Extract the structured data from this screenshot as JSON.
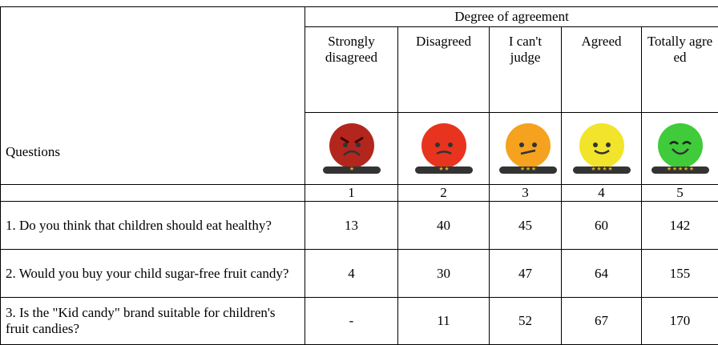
{
  "table": {
    "group_header": "Degree of agreement",
    "question_header": "Questions",
    "columns": [
      {
        "label": "Strongly disagreed",
        "score": 1
      },
      {
        "label": "Disagreed",
        "score": 2
      },
      {
        "label": "I can't judge",
        "score": 3
      },
      {
        "label": "Agreed",
        "score": 4
      },
      {
        "label": "Totally agreed",
        "score": 5
      }
    ],
    "rows": [
      {
        "question": "1. Do you think that children should eat healthy?",
        "values": [
          13,
          40,
          45,
          60,
          142
        ]
      },
      {
        "question": "2. Would you buy your child sugar-free fruit candy?",
        "values": [
          4,
          30,
          47,
          64,
          155
        ]
      },
      {
        "question": "3. Is the \"Kid candy\" brand suitable for children's fruit candies?",
        "values": [
          "-",
          11,
          52,
          67,
          170
        ]
      }
    ]
  }
}
